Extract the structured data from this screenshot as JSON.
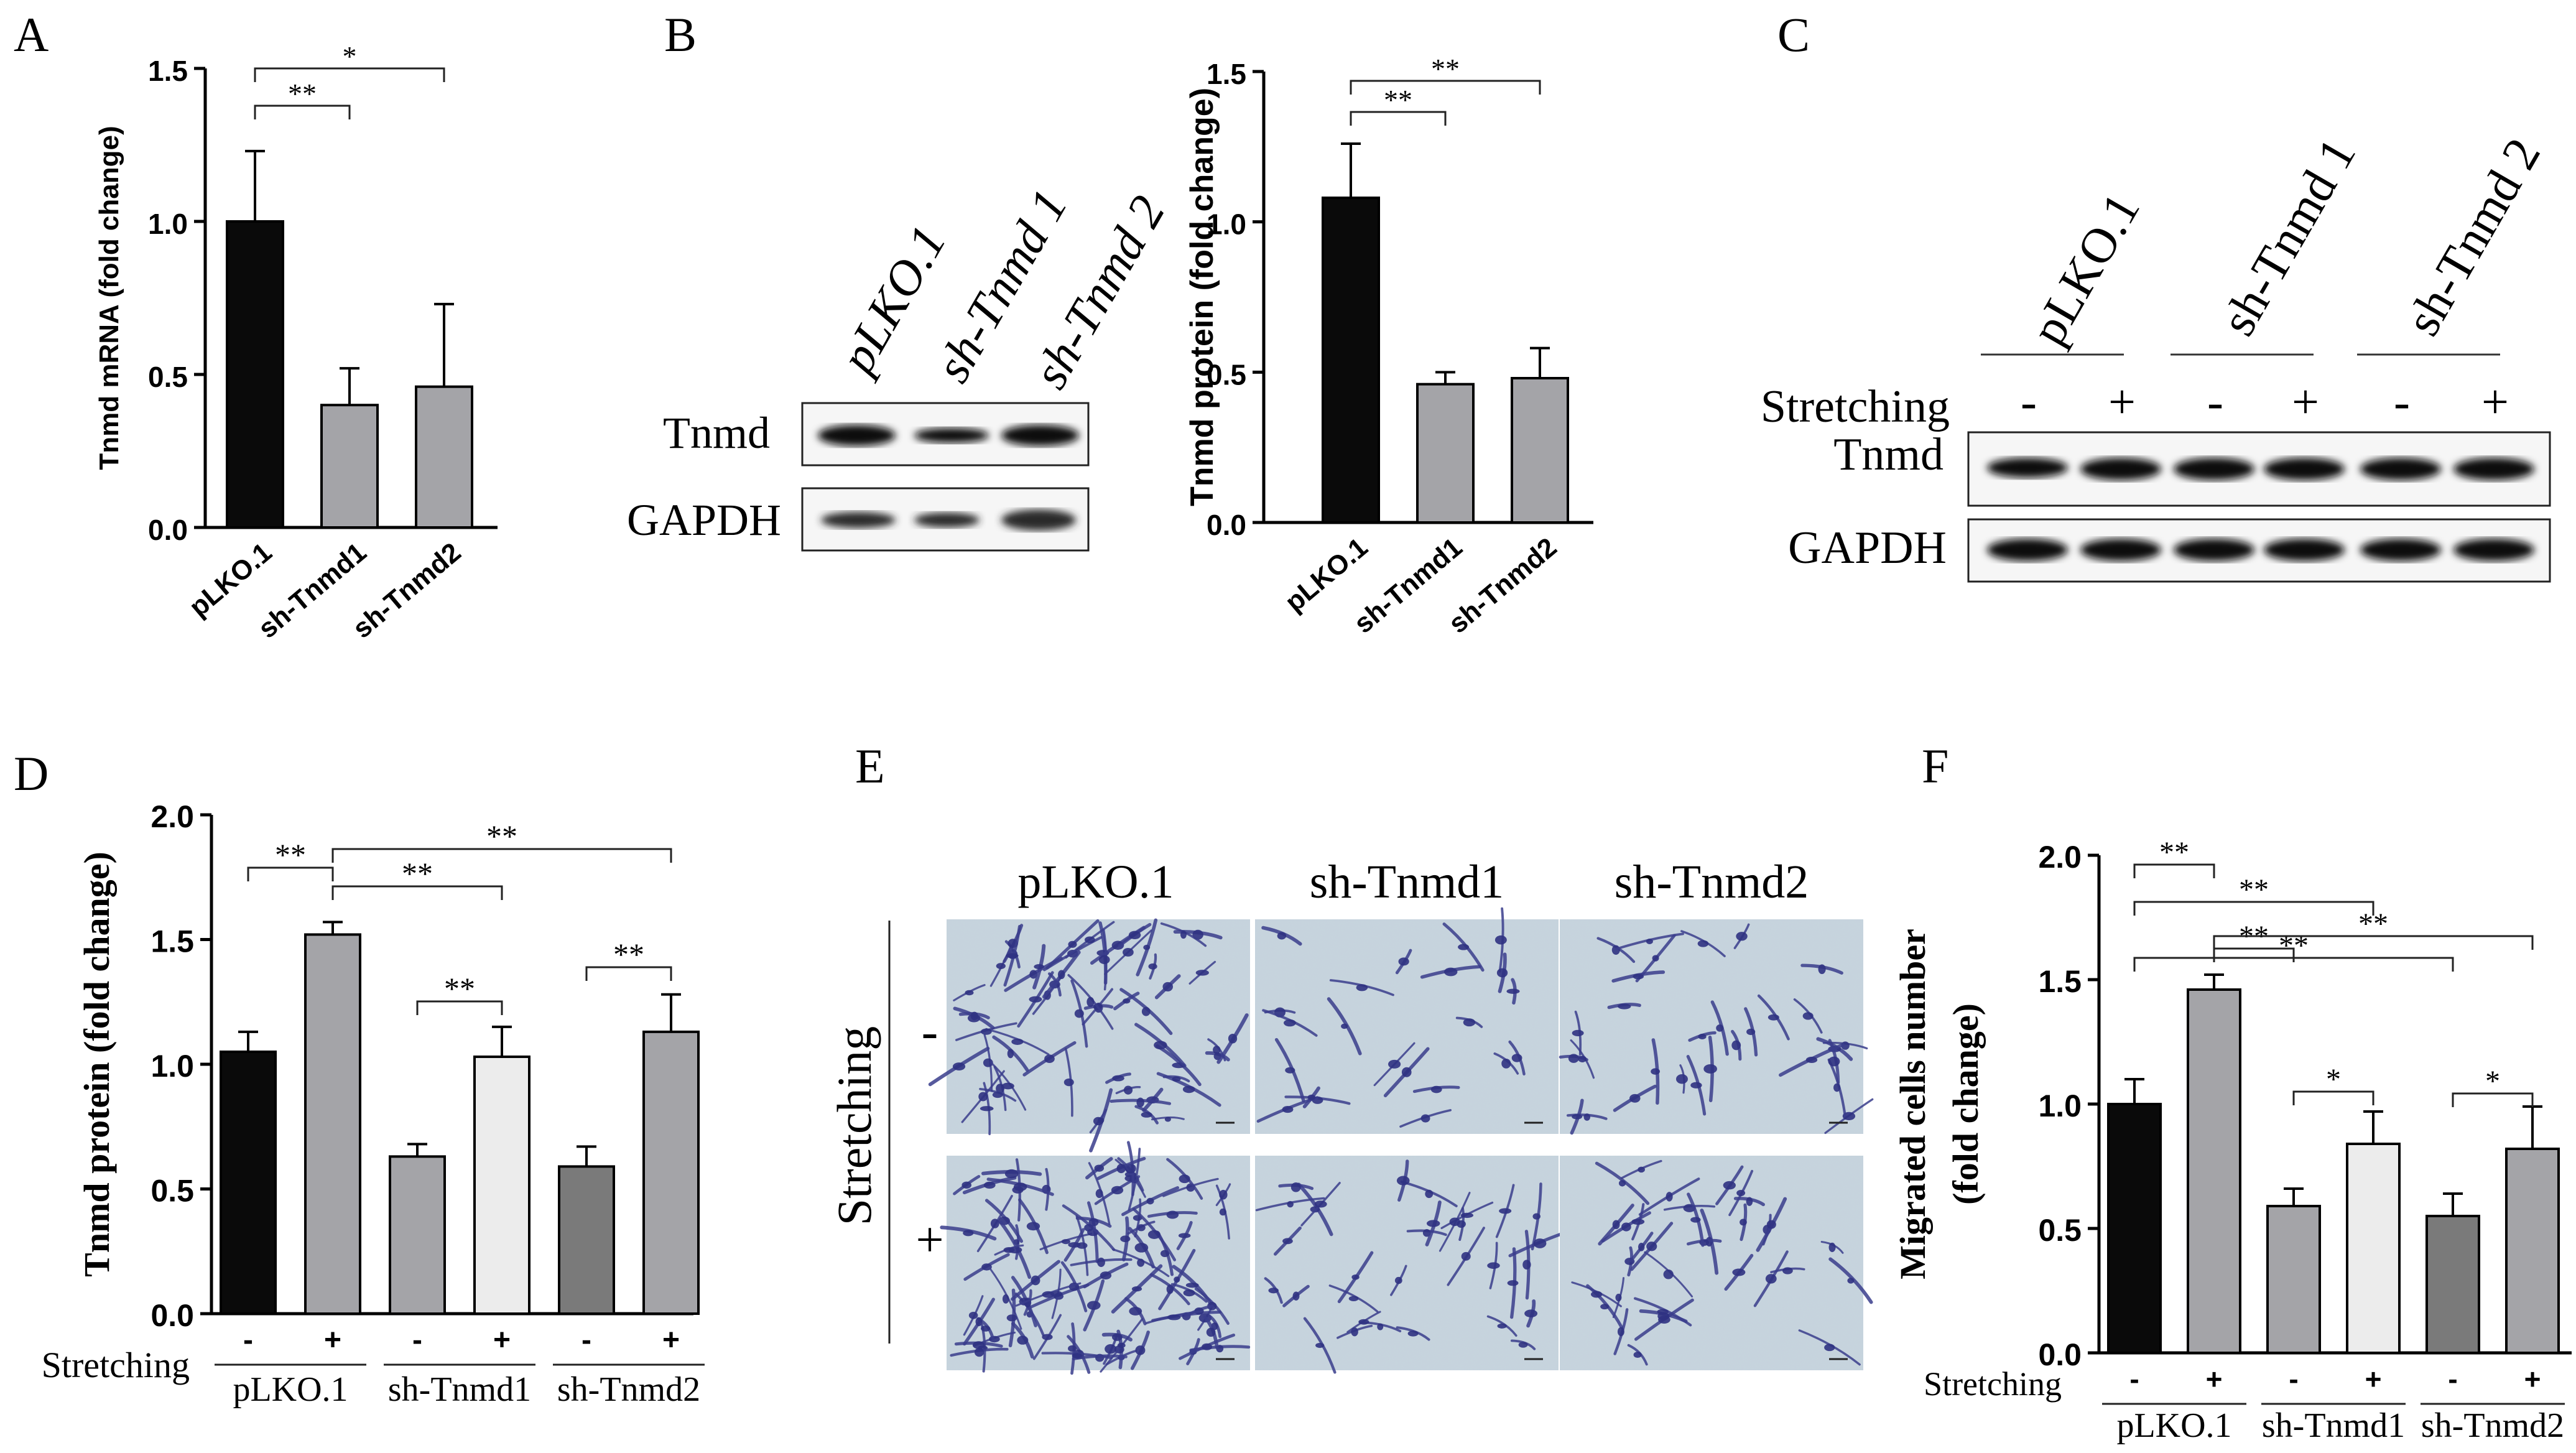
{
  "panels": {
    "A": {
      "letter": "A",
      "chart_data": {
        "type": "bar",
        "ylabel": "Tnmd mRNA (fold change)",
        "ylim": [
          0,
          1.5
        ],
        "yticks": [
          "0.0",
          "0.5",
          "1.0",
          "1.5"
        ],
        "categories": [
          "pLKO.1",
          "sh-Tnmd1",
          "sh-Tnmd2"
        ],
        "values": [
          1.0,
          0.4,
          0.46
        ],
        "errors": [
          0.23,
          0.12,
          0.27
        ],
        "colors": [
          "#0a0a0a",
          "#a4a4a8",
          "#a4a4a8"
        ],
        "significance": [
          {
            "from": 0,
            "to": 1,
            "label": "**"
          },
          {
            "from": 0,
            "to": 2,
            "label": "*"
          }
        ]
      }
    },
    "B": {
      "letter": "B",
      "blot": {
        "lanes": [
          "pLKO.1",
          "sh-Tnmd 1",
          "sh-Tnmd 2"
        ],
        "rows": [
          "Tnmd",
          "GAPDH"
        ]
      },
      "chart_data": {
        "type": "bar",
        "ylabel": "Tnmd protein (fold change)",
        "ylim": [
          0,
          1.5
        ],
        "yticks": [
          "0.0",
          "0.5",
          "1.0",
          "1.5"
        ],
        "categories": [
          "pLKO.1",
          "sh-Tnmd1",
          "sh-Tnmd2"
        ],
        "values": [
          1.08,
          0.46,
          0.48
        ],
        "errors": [
          0.18,
          0.04,
          0.1
        ],
        "colors": [
          "#0a0a0a",
          "#a4a4a8",
          "#a4a4a8"
        ],
        "significance": [
          {
            "from": 0,
            "to": 1,
            "label": "**"
          },
          {
            "from": 0,
            "to": 2,
            "label": "**"
          }
        ]
      }
    },
    "C": {
      "letter": "C",
      "blot": {
        "groups": [
          "pLKO.1",
          "sh-Tnmd 1",
          "sh-Tnmd 2"
        ],
        "stretch_label": "Stretching",
        "signs": [
          "-",
          "+",
          "-",
          "+",
          "-",
          "+"
        ],
        "rows": [
          "Tnmd",
          "GAPDH"
        ]
      }
    },
    "D": {
      "letter": "D",
      "chart_data": {
        "type": "bar",
        "ylabel": "Tnmd protein (fold change)",
        "ylim": [
          0,
          2.0
        ],
        "yticks": [
          "0.0",
          "0.5",
          "1.0",
          "1.5",
          "2.0"
        ],
        "stretch_label": "Stretching",
        "signs": [
          "-",
          "+",
          "-",
          "+",
          "-",
          "+"
        ],
        "groups": [
          "pLKO.1",
          "sh-Tnmd1",
          "sh-Tnmd2"
        ],
        "values": [
          1.05,
          1.52,
          0.63,
          1.03,
          0.59,
          1.13
        ],
        "errors": [
          0.08,
          0.05,
          0.05,
          0.12,
          0.08,
          0.15
        ],
        "colors": [
          "#0a0a0a",
          "#a4a4a8",
          "#a4a4a8",
          "#ececec",
          "#7a7a7a",
          "#a4a4a8"
        ],
        "significance": [
          {
            "from": 0,
            "to": 1,
            "label": "**"
          },
          {
            "from": 1,
            "to": 3,
            "label": "**"
          },
          {
            "from": 1,
            "to": 5,
            "label": "**"
          },
          {
            "from": 2,
            "to": 3,
            "label": "**"
          },
          {
            "from": 4,
            "to": 5,
            "label": "**"
          }
        ]
      }
    },
    "E": {
      "letter": "E",
      "columns": [
        "pLKO.1",
        "sh-Tnmd1",
        "sh-Tnmd2"
      ],
      "row_axis_label": "Stretching",
      "row_signs": [
        "-",
        "+"
      ]
    },
    "F": {
      "letter": "F",
      "chart_data": {
        "type": "bar",
        "ylabel": "Migrated cells number (fold change)",
        "ylabel_lines": [
          "Migrated cells number",
          "(fold change)"
        ],
        "ylim": [
          0,
          2.0
        ],
        "yticks": [
          "0.0",
          "0.5",
          "1.0",
          "1.5",
          "2.0"
        ],
        "stretch_label": "Stretching",
        "signs": [
          "-",
          "+",
          "-",
          "+",
          "-",
          "+"
        ],
        "groups": [
          "pLKO.1",
          "sh-Tnmd1",
          "sh-Tnmd2"
        ],
        "values": [
          1.0,
          1.46,
          0.59,
          0.84,
          0.55,
          0.82
        ],
        "errors": [
          0.1,
          0.06,
          0.07,
          0.13,
          0.09,
          0.17
        ],
        "colors": [
          "#0a0a0a",
          "#a4a4a8",
          "#a4a4a8",
          "#ececec",
          "#7a7a7a",
          "#a4a4a8"
        ],
        "significance": [
          {
            "from": 0,
            "to": 1,
            "label": "**"
          },
          {
            "from": 0,
            "to": 3,
            "label": "**"
          },
          {
            "from": 0,
            "to": 4,
            "label": "**"
          },
          {
            "from": 1,
            "to": 2,
            "label": "**"
          },
          {
            "from": 1,
            "to": 5,
            "label": "**"
          },
          {
            "from": 2,
            "to": 3,
            "label": "*"
          },
          {
            "from": 4,
            "to": 5,
            "label": "*"
          }
        ]
      }
    }
  }
}
